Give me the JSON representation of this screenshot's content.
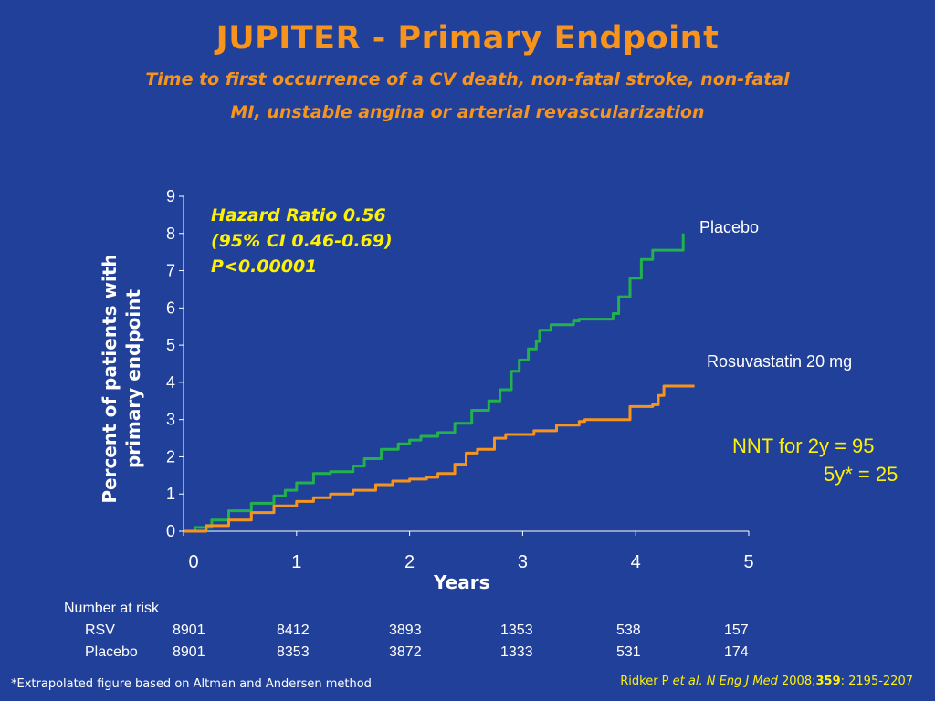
{
  "slide": {
    "title": "JUPITER - Primary Endpoint",
    "subtitle_line1": "Time to first occurrence of a CV death, non-fatal stroke, non-fatal",
    "subtitle_line2": "MI, unstable angina or arterial revascularization"
  },
  "annotation": {
    "line1": "Hazard Ratio 0.56",
    "line2": "(95% CI 0.46-0.69)",
    "line3": "P<0.00001"
  },
  "nnt": {
    "line1": "NNT for 2y  = 95",
    "line2": "5y* = 25"
  },
  "number_at_risk": {
    "title": "Number at risk",
    "rows": [
      {
        "label": "RSV",
        "values": [
          "8901",
          "8412",
          "3893",
          "1353",
          "538",
          "157"
        ]
      },
      {
        "label": "Placebo",
        "values": [
          "8901",
          "8353",
          "3872",
          "1333",
          "531",
          "174"
        ]
      }
    ]
  },
  "footnote": "*Extrapolated figure based on Altman and Andersen method",
  "citation": {
    "authors": "Ridker P ",
    "etal": "et al.",
    "journal": " N Eng J Med",
    "year": " 2008;",
    "volume": "359",
    "pages": ": 2195-2207"
  },
  "colors": {
    "background": "#21409a",
    "title": "#f7941d",
    "highlight": "#fff200",
    "placebo": "#22b14c",
    "rosuvastatin": "#f7941d"
  },
  "chart_data": {
    "type": "line",
    "xlabel": "Years",
    "ylabel": "Percent of patients with primary endpoint",
    "xlim": [
      0,
      5
    ],
    "ylim": [
      0,
      9
    ],
    "xticks": [
      "0",
      "1",
      "2",
      "3",
      "4",
      "5"
    ],
    "yticks": [
      "0",
      "1",
      "2",
      "3",
      "4",
      "5",
      "6",
      "7",
      "8",
      "9"
    ],
    "series": [
      {
        "name": "Placebo",
        "color": "#22b14c",
        "points": [
          [
            0,
            0
          ],
          [
            0.1,
            0.1
          ],
          [
            0.25,
            0.3
          ],
          [
            0.4,
            0.55
          ],
          [
            0.6,
            0.75
          ],
          [
            0.8,
            0.95
          ],
          [
            0.9,
            1.1
          ],
          [
            1.0,
            1.3
          ],
          [
            1.15,
            1.55
          ],
          [
            1.3,
            1.6
          ],
          [
            1.5,
            1.75
          ],
          [
            1.6,
            1.95
          ],
          [
            1.75,
            2.2
          ],
          [
            1.9,
            2.35
          ],
          [
            2.0,
            2.45
          ],
          [
            2.1,
            2.55
          ],
          [
            2.25,
            2.65
          ],
          [
            2.4,
            2.9
          ],
          [
            2.55,
            3.25
          ],
          [
            2.7,
            3.5
          ],
          [
            2.8,
            3.8
          ],
          [
            2.9,
            4.3
          ],
          [
            2.97,
            4.6
          ],
          [
            3.05,
            4.9
          ],
          [
            3.12,
            5.1
          ],
          [
            3.15,
            5.4
          ],
          [
            3.25,
            5.55
          ],
          [
            3.45,
            5.65
          ],
          [
            3.5,
            5.7
          ],
          [
            3.72,
            5.7
          ],
          [
            3.8,
            5.85
          ],
          [
            3.85,
            6.3
          ],
          [
            3.95,
            6.8
          ],
          [
            4.05,
            7.3
          ],
          [
            4.15,
            7.55
          ],
          [
            4.38,
            7.55
          ],
          [
            4.42,
            8.0
          ]
        ]
      },
      {
        "name": "Rosuvastatin 20 mg",
        "color": "#f7941d",
        "points": [
          [
            0,
            0
          ],
          [
            0.2,
            0.15
          ],
          [
            0.4,
            0.3
          ],
          [
            0.6,
            0.5
          ],
          [
            0.8,
            0.68
          ],
          [
            1.0,
            0.8
          ],
          [
            1.15,
            0.9
          ],
          [
            1.3,
            1.0
          ],
          [
            1.5,
            1.1
          ],
          [
            1.7,
            1.25
          ],
          [
            1.85,
            1.35
          ],
          [
            2.0,
            1.4
          ],
          [
            2.15,
            1.45
          ],
          [
            2.25,
            1.55
          ],
          [
            2.4,
            1.8
          ],
          [
            2.5,
            2.1
          ],
          [
            2.6,
            2.2
          ],
          [
            2.75,
            2.5
          ],
          [
            2.85,
            2.6
          ],
          [
            3.0,
            2.6
          ],
          [
            3.1,
            2.7
          ],
          [
            3.3,
            2.85
          ],
          [
            3.5,
            2.95
          ],
          [
            3.55,
            3.0
          ],
          [
            3.9,
            3.0
          ],
          [
            3.95,
            3.35
          ],
          [
            4.15,
            3.4
          ],
          [
            4.2,
            3.65
          ],
          [
            4.25,
            3.9
          ],
          [
            4.52,
            3.9
          ]
        ]
      }
    ]
  }
}
